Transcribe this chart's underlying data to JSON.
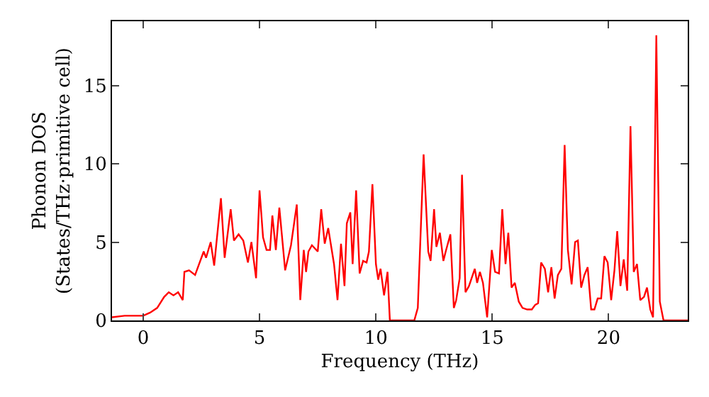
{
  "chart_data": {
    "type": "line",
    "xlabel": "Frequency (THz)",
    "ylabel": "Phonon DOS\n(States/THz·primitive cell)",
    "xlim": [
      -1.34,
      23.4
    ],
    "ylim": [
      0,
      19.1
    ],
    "xticks": [
      0,
      5,
      10,
      15,
      20
    ],
    "yticks": [
      0,
      5,
      10,
      15
    ],
    "grid": false,
    "marker": "none",
    "line_style": "solid",
    "series": [
      {
        "color": "#ff0000",
        "x": [
          -1.34,
          -0.8,
          0,
          0.3,
          0.6,
          0.9,
          1.1,
          1.3,
          1.5,
          1.7,
          1.77,
          1.97,
          2.23,
          2.6,
          2.7,
          2.9,
          3.05,
          3.34,
          3.5,
          3.76,
          3.9,
          4.1,
          4.3,
          4.5,
          4.65,
          4.85,
          5.0,
          5.15,
          5.3,
          5.45,
          5.55,
          5.7,
          5.85,
          6.1,
          6.35,
          6.6,
          6.75,
          6.9,
          7.0,
          7.1,
          7.25,
          7.5,
          7.65,
          7.8,
          7.95,
          8.2,
          8.35,
          8.5,
          8.65,
          8.75,
          8.9,
          9.0,
          9.15,
          9.3,
          9.45,
          9.6,
          9.7,
          9.85,
          10.0,
          10.1,
          10.2,
          10.35,
          10.5,
          10.6,
          11.65,
          11.8,
          12.05,
          12.25,
          12.35,
          12.5,
          12.6,
          12.75,
          12.9,
          13.0,
          13.2,
          13.35,
          13.45,
          13.6,
          13.7,
          13.85,
          14.0,
          14.25,
          14.35,
          14.47,
          14.6,
          14.78,
          14.98,
          15.12,
          15.29,
          15.43,
          15.57,
          15.69,
          15.83,
          15.97,
          16.14,
          16.3,
          16.5,
          16.7,
          16.85,
          16.97,
          17.1,
          17.26,
          17.4,
          17.54,
          17.68,
          17.82,
          17.97,
          18.11,
          18.25,
          18.41,
          18.56,
          18.68,
          18.82,
          18.96,
          19.1,
          19.25,
          19.39,
          19.53,
          19.68,
          19.82,
          19.96,
          20.11,
          20.25,
          20.37,
          20.51,
          20.65,
          20.8,
          20.94,
          21.08,
          21.22,
          21.36,
          21.52,
          21.65,
          21.79,
          21.91,
          22.05,
          22.2,
          22.36,
          23.4
        ],
        "values": [
          0.2,
          0.3,
          0.3,
          0.5,
          0.8,
          1.5,
          1.8,
          1.6,
          1.8,
          1.3,
          3.1,
          3.2,
          2.9,
          4.4,
          4.0,
          5.0,
          3.5,
          7.8,
          4.0,
          7.1,
          5.1,
          5.5,
          5.1,
          3.7,
          5.0,
          2.7,
          8.3,
          5.3,
          4.5,
          4.5,
          6.7,
          4.5,
          7.2,
          3.2,
          4.8,
          7.4,
          1.3,
          4.5,
          3.1,
          4.4,
          4.8,
          4.4,
          7.1,
          4.9,
          5.9,
          3.6,
          1.3,
          4.9,
          2.2,
          6.2,
          6.9,
          3.6,
          8.3,
          3.0,
          3.8,
          3.7,
          4.4,
          8.7,
          3.6,
          2.6,
          3.3,
          1.6,
          3.1,
          0,
          0,
          0.8,
          10.6,
          4.4,
          3.8,
          7.1,
          4.7,
          5.6,
          3.8,
          4.4,
          5.5,
          0.8,
          1.3,
          2.7,
          9.3,
          1.8,
          2.2,
          3.3,
          2.4,
          3.1,
          2.4,
          0.2,
          4.5,
          3.1,
          3.0,
          7.1,
          3.6,
          5.6,
          2.1,
          2.4,
          1.2,
          0.8,
          0.7,
          0.7,
          1.0,
          1.1,
          3.7,
          3.3,
          1.8,
          3.4,
          1.4,
          2.9,
          3.3,
          11.2,
          4.5,
          2.3,
          5.0,
          5.1,
          2.1,
          2.9,
          3.4,
          0.7,
          0.7,
          1.4,
          1.4,
          4.1,
          3.7,
          1.3,
          3.2,
          5.7,
          2.2,
          3.9,
          1.9,
          12.4,
          3.1,
          3.6,
          1.3,
          1.5,
          2.1,
          0.7,
          0.2,
          18.2,
          1.2,
          0,
          0
        ]
      }
    ]
  }
}
